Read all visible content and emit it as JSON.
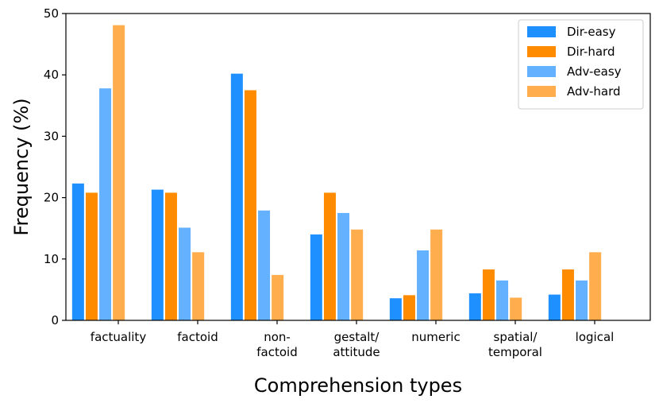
{
  "chart_data": {
    "type": "bar",
    "title": "",
    "xlabel": "Comprehension types",
    "ylabel": "Frequency (%)",
    "ylim": [
      0,
      50
    ],
    "yticks": [
      0,
      10,
      20,
      30,
      40,
      50
    ],
    "grid": false,
    "legend_position": "top-right",
    "categories": [
      [
        "factuality"
      ],
      [
        "factoid"
      ],
      [
        "non-",
        "factoid"
      ],
      [
        "gestalt/",
        "attitude"
      ],
      [
        "numeric"
      ],
      [
        "spatial/",
        "temporal"
      ],
      [
        "logical"
      ]
    ],
    "series": [
      {
        "name": "Dir-easy",
        "color": "#1e90ff",
        "values": [
          22.3,
          21.3,
          40.2,
          14.0,
          3.6,
          4.4,
          4.2
        ]
      },
      {
        "name": "Dir-hard",
        "color": "#ff8c00",
        "values": [
          20.8,
          20.8,
          37.5,
          20.8,
          4.1,
          8.3,
          8.3
        ]
      },
      {
        "name": "Adv-easy",
        "color": "#63b1ff",
        "values": [
          37.8,
          15.1,
          17.9,
          17.5,
          11.4,
          6.5,
          6.5
        ]
      },
      {
        "name": "Adv-hard",
        "color": "#ffad4d",
        "values": [
          48.1,
          11.1,
          7.4,
          14.8,
          14.8,
          3.7,
          11.1
        ]
      }
    ]
  }
}
